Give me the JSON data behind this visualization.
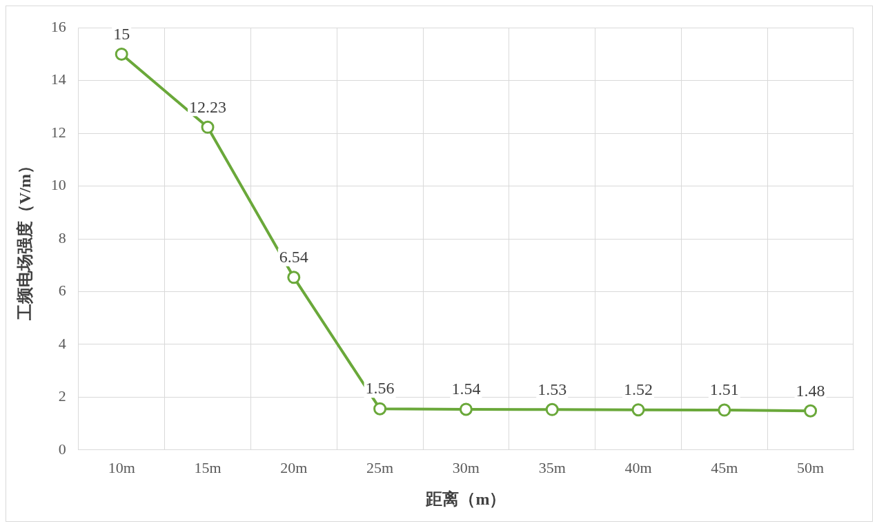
{
  "chart_data": {
    "type": "line",
    "xlabel": "距离（m）",
    "ylabel": "工频电场强度（V/m）",
    "categories": [
      "10m",
      "15m",
      "20m",
      "25m",
      "30m",
      "35m",
      "40m",
      "45m",
      "50m"
    ],
    "series": [
      {
        "color": "#6aa83a",
        "values": [
          15,
          12.23,
          6.54,
          1.56,
          1.54,
          1.53,
          1.52,
          1.51,
          1.48
        ]
      }
    ],
    "ylim": [
      0,
      16
    ],
    "yticks": [
      0,
      2,
      4,
      6,
      8,
      10,
      12,
      14,
      16
    ],
    "grid": true,
    "marker": "circle",
    "line_style": "solid",
    "data_labels": true,
    "legend": false
  }
}
